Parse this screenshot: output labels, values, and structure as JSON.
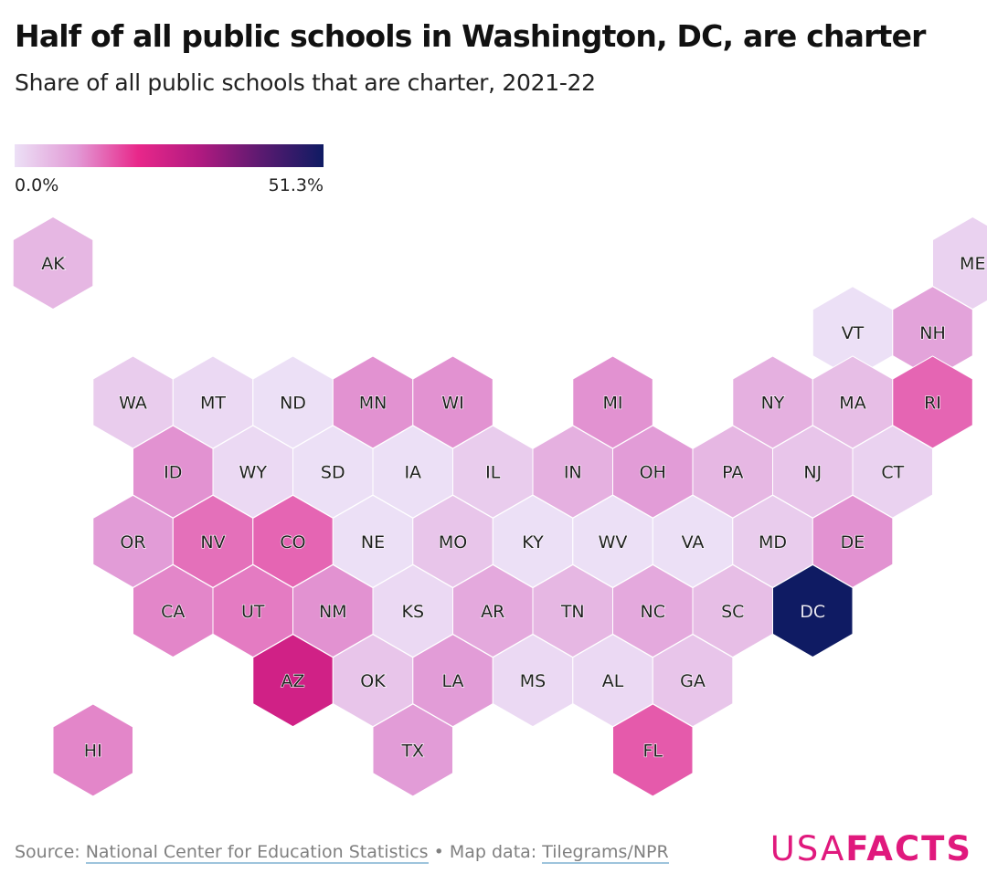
{
  "title": "Half of all public schools in Washington, DC, are charter",
  "subtitle": "Share of all public schools that are charter, 2021-22",
  "legend": {
    "min_label": "0.0%",
    "max_label": "51.3%",
    "min": 0.0,
    "max": 51.3,
    "colors": [
      "#ece0f6",
      "#e29ad6",
      "#e8278a",
      "#b01a80",
      "#5a1a70",
      "#0f1b63"
    ]
  },
  "footer": {
    "source_prefix": "Source: ",
    "source_link": "National Center for Education Statistics",
    "separator": " • Map data: ",
    "map_link": "Tilegrams/NPR"
  },
  "brand": {
    "part1": "USA",
    "part2": "FACTS"
  },
  "chart_data": {
    "type": "hex-tile-choropleth",
    "title": "Half of all public schools in Washington, DC, are charter",
    "subtitle": "Share of all public schools that are charter, 2021-22",
    "value_unit": "percent",
    "states": [
      {
        "code": "AK",
        "col": 0,
        "row": 0,
        "value": 6
      },
      {
        "code": "ME",
        "col": 11.5,
        "row": 0,
        "value": 2
      },
      {
        "code": "VT",
        "col": 10,
        "row": 1,
        "value": 0
      },
      {
        "code": "NH",
        "col": 11,
        "row": 1,
        "value": 9
      },
      {
        "code": "WA",
        "col": 1,
        "row": 2,
        "value": 3
      },
      {
        "code": "MT",
        "col": 2,
        "row": 2,
        "value": 1
      },
      {
        "code": "ND",
        "col": 3,
        "row": 2,
        "value": 0
      },
      {
        "code": "MN",
        "col": 4,
        "row": 2,
        "value": 11
      },
      {
        "code": "WI",
        "col": 5,
        "row": 2,
        "value": 11
      },
      {
        "code": "MI",
        "col": 7,
        "row": 2,
        "value": 11
      },
      {
        "code": "NY",
        "col": 9,
        "row": 2,
        "value": 7
      },
      {
        "code": "MA",
        "col": 10,
        "row": 2,
        "value": 5
      },
      {
        "code": "RI",
        "col": 11,
        "row": 2,
        "value": 15
      },
      {
        "code": "ID",
        "col": 1.5,
        "row": 3,
        "value": 11
      },
      {
        "code": "WY",
        "col": 2.5,
        "row": 3,
        "value": 1
      },
      {
        "code": "SD",
        "col": 3.5,
        "row": 3,
        "value": 0
      },
      {
        "code": "IA",
        "col": 4.5,
        "row": 3,
        "value": 0
      },
      {
        "code": "IL",
        "col": 5.5,
        "row": 3,
        "value": 3
      },
      {
        "code": "IN",
        "col": 6.5,
        "row": 3,
        "value": 7
      },
      {
        "code": "OH",
        "col": 7.5,
        "row": 3,
        "value": 10
      },
      {
        "code": "PA",
        "col": 8.5,
        "row": 3,
        "value": 6
      },
      {
        "code": "NJ",
        "col": 9.5,
        "row": 3,
        "value": 4
      },
      {
        "code": "CT",
        "col": 10.5,
        "row": 3,
        "value": 2
      },
      {
        "code": "OR",
        "col": 1,
        "row": 4,
        "value": 10
      },
      {
        "code": "NV",
        "col": 2,
        "row": 4,
        "value": 14
      },
      {
        "code": "CO",
        "col": 3,
        "row": 4,
        "value": 15
      },
      {
        "code": "NE",
        "col": 4,
        "row": 4,
        "value": 0
      },
      {
        "code": "MO",
        "col": 5,
        "row": 4,
        "value": 4
      },
      {
        "code": "KY",
        "col": 6,
        "row": 4,
        "value": 0
      },
      {
        "code": "WV",
        "col": 7,
        "row": 4,
        "value": 0
      },
      {
        "code": "VA",
        "col": 8,
        "row": 4,
        "value": 0
      },
      {
        "code": "MD",
        "col": 9,
        "row": 4,
        "value": 3
      },
      {
        "code": "DE",
        "col": 10,
        "row": 4,
        "value": 11
      },
      {
        "code": "CA",
        "col": 1.5,
        "row": 5,
        "value": 12
      },
      {
        "code": "UT",
        "col": 2.5,
        "row": 5,
        "value": 13
      },
      {
        "code": "NM",
        "col": 3.5,
        "row": 5,
        "value": 11
      },
      {
        "code": "KS",
        "col": 4.5,
        "row": 5,
        "value": 1
      },
      {
        "code": "AR",
        "col": 5.5,
        "row": 5,
        "value": 8
      },
      {
        "code": "TN",
        "col": 6.5,
        "row": 5,
        "value": 6
      },
      {
        "code": "NC",
        "col": 7.5,
        "row": 5,
        "value": 8
      },
      {
        "code": "SC",
        "col": 8.5,
        "row": 5,
        "value": 5
      },
      {
        "code": "DC",
        "col": 9.5,
        "row": 5,
        "value": 51.3
      },
      {
        "code": "AZ",
        "col": 3,
        "row": 6,
        "value": 25
      },
      {
        "code": "OK",
        "col": 4,
        "row": 6,
        "value": 4
      },
      {
        "code": "LA",
        "col": 5,
        "row": 6,
        "value": 10
      },
      {
        "code": "MS",
        "col": 6,
        "row": 6,
        "value": 1
      },
      {
        "code": "AL",
        "col": 7,
        "row": 6,
        "value": 1
      },
      {
        "code": "GA",
        "col": 8,
        "row": 6,
        "value": 4
      },
      {
        "code": "HI",
        "col": 0.5,
        "row": 7,
        "value": 12
      },
      {
        "code": "TX",
        "col": 4.5,
        "row": 7,
        "value": 10
      },
      {
        "code": "FL",
        "col": 7.5,
        "row": 7,
        "value": 16
      }
    ]
  }
}
